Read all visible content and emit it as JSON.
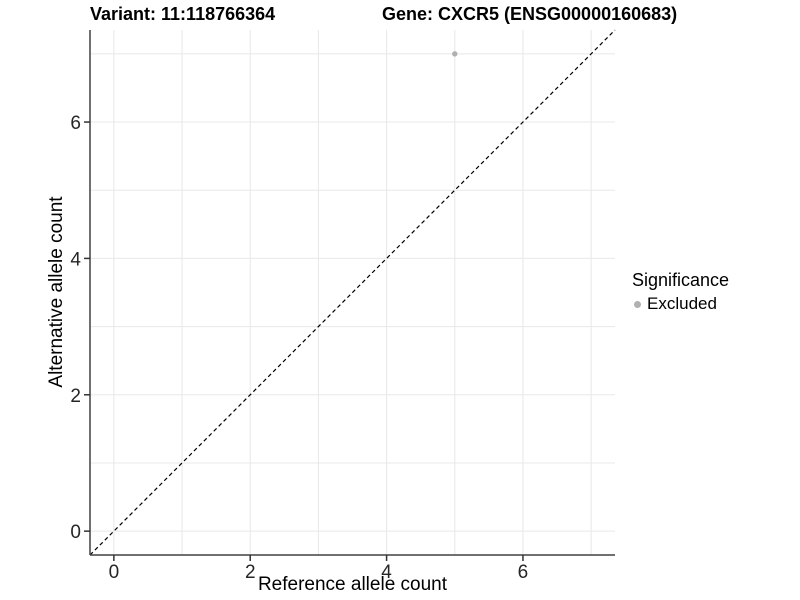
{
  "chart_data": {
    "type": "scatter",
    "titles": {
      "left": "Variant: 11:118766364",
      "right": "Gene: CXCR5 (ENSG00000160683)"
    },
    "xlabel": "Reference allele count",
    "ylabel": "Alternative allele count",
    "axis_range": [
      -0.35,
      7.35
    ],
    "tick_values": [
      0,
      2,
      4,
      6
    ],
    "tick_labels": [
      "0",
      "2",
      "4",
      "6"
    ],
    "grid_values": [
      0,
      1,
      2,
      3,
      4,
      5,
      6,
      7
    ],
    "points": [
      {
        "x": 5,
        "y": 7,
        "significance": "Excluded"
      }
    ],
    "identity_line": {
      "style": "dashed",
      "from": -0.35,
      "to": 7.35
    },
    "legend": {
      "title": "Significance",
      "position": "right",
      "items": [
        {
          "label": "Excluded",
          "color": "#b0b0b0"
        }
      ]
    },
    "grid": true,
    "colors": {
      "point": "#b0b0b0",
      "grid": "#e8e8e8",
      "axis_line": "#404040",
      "tick": "#333333",
      "tick_label": "#262626",
      "identity_line": "#000000",
      "background": "#ffffff"
    }
  }
}
